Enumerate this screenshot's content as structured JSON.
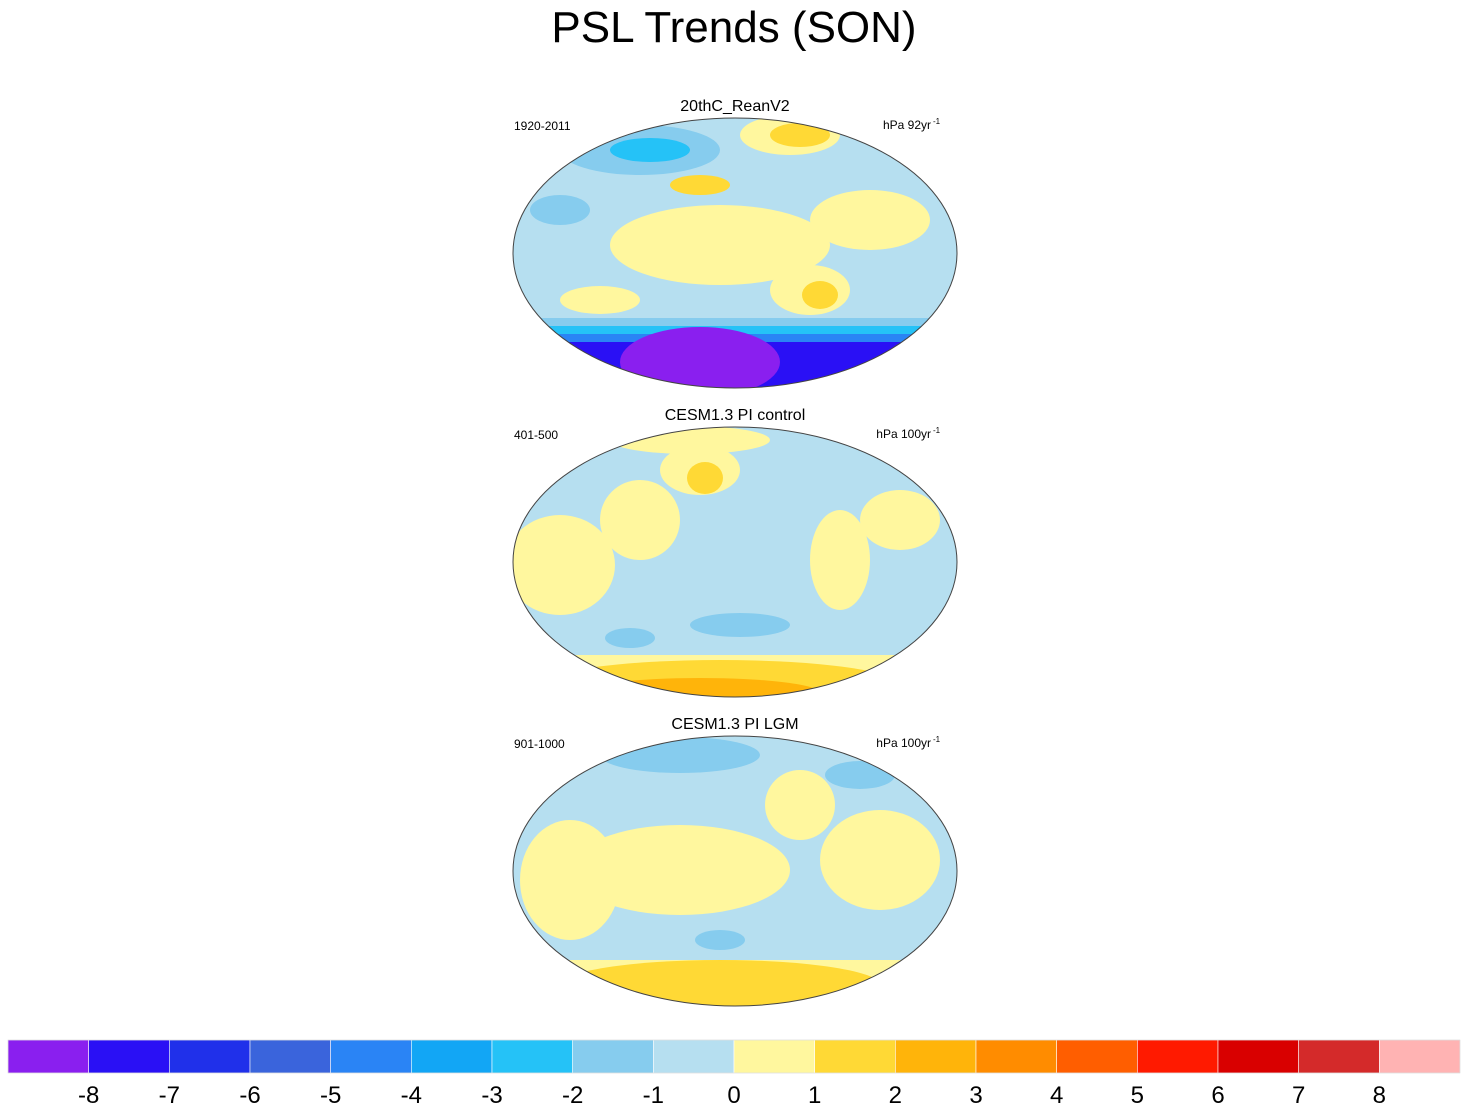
{
  "title": "PSL Trends (SON)",
  "panels": [
    {
      "title": "20thC_ReanV2",
      "left_label": "1920-2011",
      "right_label": "hPa 92yr",
      "right_label_sup": "-1"
    },
    {
      "title": "CESM1.3 PI control",
      "left_label": "401-500",
      "right_label": "hPa 100yr",
      "right_label_sup": "-1"
    },
    {
      "title": "CESM1.3 PI LGM",
      "left_label": "901-1000",
      "right_label": "hPa 100yr",
      "right_label_sup": "-1"
    }
  ],
  "colorbar": {
    "colors": [
      "#8a1fef",
      "#2a10f5",
      "#2030ea",
      "#3a64dc",
      "#2a84f5",
      "#12a6f5",
      "#25c2f7",
      "#86ccee",
      "#b6dff0",
      "#fff79e",
      "#ffd935",
      "#ffb40a",
      "#ff8c00",
      "#ff5e00",
      "#ff1a00",
      "#d90000",
      "#d42a2a",
      "#ffb3b3"
    ],
    "levels": [
      -8,
      -7,
      -6,
      -5,
      -4,
      -3,
      -2,
      -1,
      0,
      1,
      2,
      3,
      4,
      5,
      6,
      7,
      8
    ]
  }
}
